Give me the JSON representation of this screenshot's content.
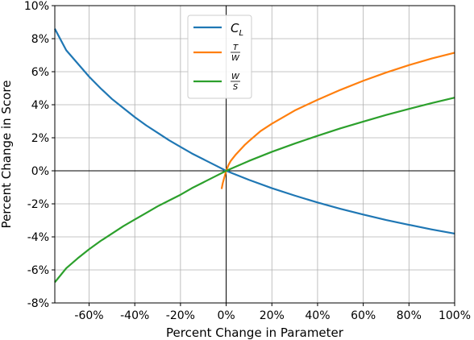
{
  "chart_data": {
    "type": "line",
    "title": "",
    "xlabel": "Percent Change in Parameter",
    "ylabel": "Percent Change in Score",
    "xlim": [
      -75,
      100
    ],
    "ylim": [
      -8,
      10
    ],
    "x_ticks": [
      -60,
      -40,
      -20,
      0,
      20,
      40,
      60,
      80,
      100
    ],
    "x_tick_labels": [
      "-60%",
      "-40%",
      "-20%",
      "0%",
      "20%",
      "40%",
      "60%",
      "80%",
      "100%"
    ],
    "y_ticks": [
      -8,
      -6,
      -4,
      -2,
      0,
      2,
      4,
      6,
      8,
      10
    ],
    "y_tick_labels": [
      "-8%",
      "-6%",
      "-4%",
      "-2%",
      "0%",
      "2%",
      "4%",
      "6%",
      "8%",
      "10%"
    ],
    "grid": true,
    "legend_position": "top-center",
    "zero_lines": true,
    "series": [
      {
        "name": "C_L",
        "legend_main": "C",
        "legend_sub": "L",
        "color": "#1f77b4",
        "x": [
          -75,
          -70,
          -65,
          -60,
          -55,
          -50,
          -45,
          -40,
          -35,
          -30,
          -25,
          -20,
          -15,
          -10,
          -5,
          0,
          10,
          20,
          30,
          40,
          50,
          60,
          70,
          80,
          90,
          100
        ],
        "y": [
          8.6,
          7.3,
          6.5,
          5.7,
          5.0,
          4.35,
          3.8,
          3.25,
          2.75,
          2.3,
          1.85,
          1.45,
          1.05,
          0.7,
          0.35,
          0.0,
          -0.55,
          -1.05,
          -1.5,
          -1.92,
          -2.3,
          -2.65,
          -2.98,
          -3.27,
          -3.55,
          -3.8
        ]
      },
      {
        "name": "T/W",
        "legend_num": "T",
        "legend_den": "W",
        "color": "#ff7f0e",
        "x": [
          -2,
          -1.5,
          -1,
          -0.5,
          0,
          1,
          2,
          4,
          6,
          8,
          10,
          15,
          20,
          30,
          40,
          50,
          60,
          70,
          80,
          90,
          100
        ],
        "y": [
          -1.1,
          -0.75,
          -0.5,
          -0.25,
          0.0,
          0.35,
          0.6,
          0.95,
          1.25,
          1.55,
          1.8,
          2.4,
          2.85,
          3.65,
          4.3,
          4.9,
          5.45,
          5.95,
          6.4,
          6.8,
          7.15
        ]
      },
      {
        "name": "W/S",
        "legend_num": "W",
        "legend_den": "S",
        "color": "#2ca02c",
        "x": [
          -75,
          -70,
          -65,
          -60,
          -55,
          -50,
          -45,
          -40,
          -35,
          -30,
          -25,
          -20,
          -15,
          -10,
          -5,
          0,
          10,
          20,
          30,
          40,
          50,
          60,
          70,
          80,
          90,
          100
        ],
        "y": [
          -6.75,
          -5.9,
          -5.3,
          -4.75,
          -4.25,
          -3.8,
          -3.35,
          -2.95,
          -2.55,
          -2.15,
          -1.8,
          -1.45,
          -1.05,
          -0.7,
          -0.35,
          0.0,
          0.6,
          1.15,
          1.65,
          2.12,
          2.57,
          2.98,
          3.38,
          3.75,
          4.1,
          4.43
        ]
      }
    ]
  }
}
